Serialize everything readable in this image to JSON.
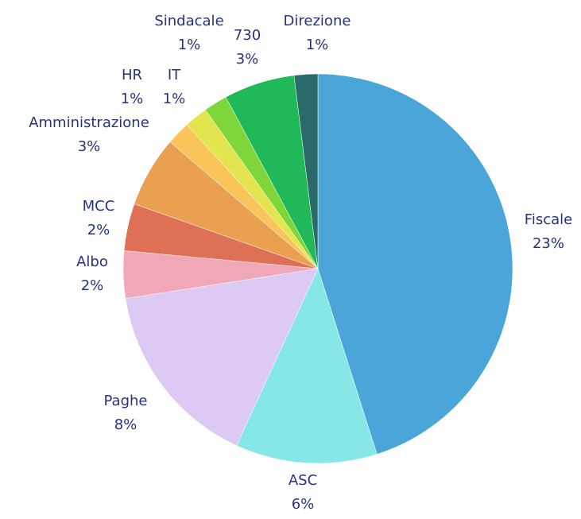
{
  "chart_data": {
    "type": "pie",
    "categories": [
      "Fiscale",
      "ASC",
      "Paghe",
      "Albo",
      "MCC",
      "Amministrazione",
      "HR",
      "IT",
      "Sindacale",
      "730",
      "Direzione"
    ],
    "values": [
      23,
      6,
      8,
      2,
      2,
      3,
      1,
      1,
      1,
      3,
      1
    ],
    "value_labels": [
      "23%",
      "6%",
      "8%",
      "2%",
      "2%",
      "3%",
      "1%",
      "1%",
      "1%",
      "3%",
      "1%"
    ],
    "colors": [
      "#4aa6d8",
      "#86e8e6",
      "#dccaf5",
      "#f0a8b8",
      "#dd7055",
      "#e9a050",
      "#f9c55a",
      "#e2e54f",
      "#7ed63a",
      "#20b858",
      "#2a6a6a"
    ]
  }
}
